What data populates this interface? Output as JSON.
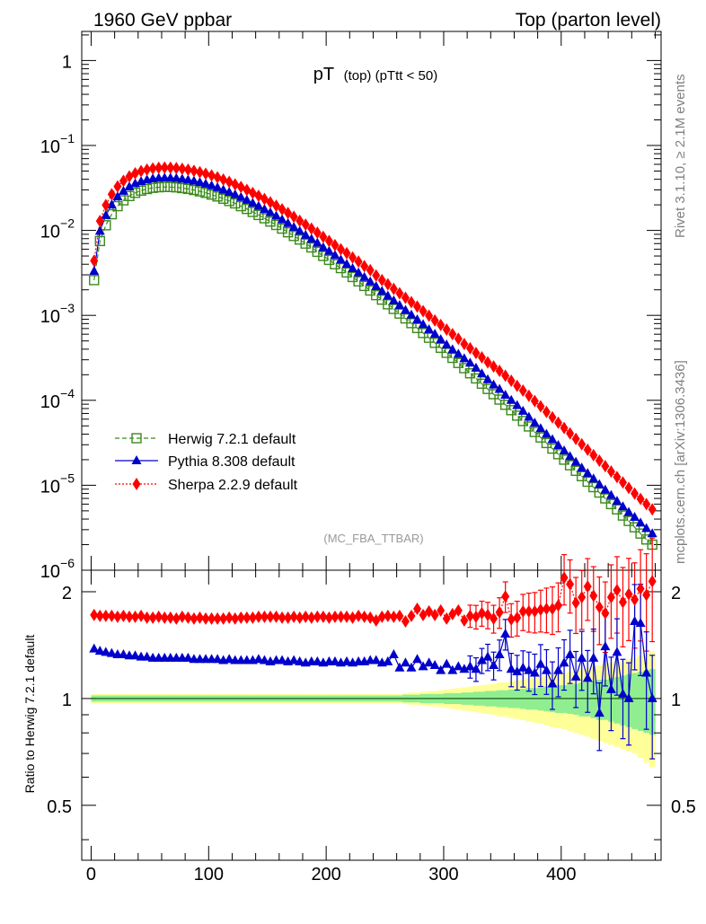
{
  "header": {
    "left": "1960 GeV ppbar",
    "right": "Top (parton level)"
  },
  "side_text": {
    "rivet": "Rivet 3.1.10, ≥ 2.1M events",
    "mcplots": "mcplots.cern.ch [arXiv:1306.3436]"
  },
  "colors": {
    "herwig": "#3a8a1a",
    "pythia": "#0000cc",
    "sherpa": "#ff0000",
    "band_inner": "#90ee90",
    "band_outer": "#ffff99"
  },
  "chart_data": [
    {
      "type": "scatter",
      "title_main": "pT",
      "title_sub": "(top) (pTtt < 50)",
      "analysis_tag": "(MC_FBA_TTBAR)",
      "xlabel": "",
      "ylabel": "",
      "ylog": true,
      "ylim": [
        1e-06,
        2.2
      ],
      "xlim": [
        -8,
        485
      ],
      "yticks": [
        {
          "v": 1,
          "label": "1"
        },
        {
          "v": 0.1,
          "mant": "10",
          "exp": "−1"
        },
        {
          "v": 0.01,
          "mant": "10",
          "exp": "−2"
        },
        {
          "v": 0.001,
          "mant": "10",
          "exp": "−3"
        },
        {
          "v": 0.0001,
          "mant": "10",
          "exp": "−4"
        },
        {
          "v": 1e-05,
          "mant": "10",
          "exp": "−5"
        },
        {
          "v": 1e-06,
          "mant": "10",
          "exp": "−6"
        }
      ],
      "legend": [
        {
          "label": "Herwig 7.2.1 default",
          "color": "#3a8a1a",
          "marker": "square-open",
          "line": "dashed"
        },
        {
          "label": "Pythia 8.308 default",
          "color": "#0000cc",
          "marker": "triangle",
          "line": "solid"
        },
        {
          "label": "Sherpa 2.2.9 default",
          "color": "#ff0000",
          "marker": "diamond",
          "line": "dotted"
        }
      ],
      "x": [
        2.5,
        7.5,
        12.5,
        17.5,
        22.5,
        27.5,
        32.5,
        37.5,
        42.5,
        47.5,
        52.5,
        57.5,
        62.5,
        67.5,
        72.5,
        77.5,
        82.5,
        87.5,
        92.5,
        97.5,
        102.5,
        107.5,
        112.5,
        117.5,
        122.5,
        127.5,
        132.5,
        137.5,
        142.5,
        147.5,
        152.5,
        157.5,
        162.5,
        167.5,
        172.5,
        177.5,
        182.5,
        187.5,
        192.5,
        197.5,
        202.5,
        207.5,
        212.5,
        217.5,
        222.5,
        227.5,
        232.5,
        237.5,
        242.5,
        247.5,
        252.5,
        257.5,
        262.5,
        267.5,
        272.5,
        277.5,
        282.5,
        287.5,
        292.5,
        297.5,
        302.5,
        307.5,
        312.5,
        317.5,
        322.5,
        327.5,
        332.5,
        337.5,
        342.5,
        347.5,
        352.5,
        357.5,
        362.5,
        367.5,
        372.5,
        377.5,
        382.5,
        387.5,
        392.5,
        397.5,
        402.5,
        407.5,
        412.5,
        417.5,
        422.5,
        427.5,
        432.5,
        437.5,
        442.5,
        447.5,
        452.5,
        457.5,
        462.5,
        467.5,
        472.5,
        477.5
      ],
      "series": [
        {
          "name": "Herwig 7.2.1 default",
          "values": [
            0.0026,
            0.0075,
            0.0115,
            0.0155,
            0.0193,
            0.0226,
            0.0254,
            0.0277,
            0.0294,
            0.0307,
            0.0317,
            0.0322,
            0.0325,
            0.0324,
            0.0321,
            0.0315,
            0.0308,
            0.0299,
            0.0288,
            0.0277,
            0.0264,
            0.0251,
            0.0236,
            0.0222,
            0.0208,
            0.0193,
            0.0179,
            0.0165,
            0.0152,
            0.0139,
            0.0127,
            0.0116,
            0.0105,
            0.0095,
            0.0086,
            0.0078,
            0.007,
            0.0063,
            0.0056,
            0.005,
            0.0045,
            0.004,
            0.0036,
            0.0032,
            0.00283,
            0.00251,
            0.00222,
            0.00196,
            0.00173,
            0.00153,
            0.00135,
            0.00119,
            0.00105,
            0.00092,
            0.00081,
            0.00071,
            0.00062,
            0.000545,
            0.000475,
            0.000415,
            0.000362,
            0.000316,
            0.000275,
            0.000239,
            0.000208,
            0.000181,
            0.000157,
            0.000136,
            0.000118,
            0.000102,
            8.85e-05,
            7.65e-05,
            6.6e-05,
            5.7e-05,
            4.92e-05,
            4.24e-05,
            3.65e-05,
            3.14e-05,
            2.7e-05,
            2.32e-05,
            2e-05,
            1.72e-05,
            1.48e-05,
            1.28e-05,
            1.1e-05,
            9.5e-06,
            8.2e-06,
            7e-06,
            6e-06,
            5.2e-06,
            4.4e-06,
            3.8e-06,
            3.2e-06,
            2.7e-06,
            2.3e-06,
            2e-06
          ]
        },
        {
          "name": "Pythia 8.308 default",
          "values": [
            0.0033,
            0.0098,
            0.015,
            0.02,
            0.0249,
            0.029,
            0.0326,
            0.0355,
            0.0377,
            0.0394,
            0.0406,
            0.0412,
            0.0415,
            0.0414,
            0.041,
            0.0402,
            0.0393,
            0.0381,
            0.0367,
            0.0352,
            0.0336,
            0.0319,
            0.03,
            0.0282,
            0.0264,
            0.0245,
            0.0227,
            0.0209,
            0.0193,
            0.0177,
            0.0162,
            0.0148,
            0.0134,
            0.0121,
            0.0109,
            0.0098,
            0.0088,
            0.0079,
            0.0071,
            0.0063,
            0.0057,
            0.0051,
            0.0045,
            0.004,
            0.00356,
            0.00317,
            0.00281,
            0.00249,
            0.00219,
            0.00192,
            0.00169,
            0.00149,
            0.00131,
            0.00115,
            0.00101,
            0.00089,
            0.00078,
            0.00068,
            0.0006,
            0.00052,
            0.00045,
            0.000395,
            0.00035,
            0.00031,
            0.000275,
            0.00024,
            0.000205,
            0.000175,
            0.000152,
            0.000135,
            0.000115,
            0.0001,
            8.7e-05,
            7.45e-05,
            6.35e-05,
            5.4e-05,
            4.65e-05,
            4e-05,
            3.45e-05,
            2.95e-05,
            2.55e-05,
            2.18e-05,
            1.87e-05,
            1.6e-05,
            1.38e-05,
            1.19e-05,
            1.02e-05,
            8.8e-06,
            7.6e-06,
            6.5e-06,
            5.6e-06,
            4.8e-06,
            4.2e-06,
            3.6e-06,
            3.1e-06,
            2.7e-06
          ]
        },
        {
          "name": "Sherpa 2.2.9 default",
          "values": [
            0.0044,
            0.0129,
            0.0199,
            0.0266,
            0.0329,
            0.0384,
            0.0432,
            0.047,
            0.05,
            0.052,
            0.0536,
            0.0545,
            0.0549,
            0.0547,
            0.0541,
            0.0531,
            0.0518,
            0.0503,
            0.0485,
            0.0465,
            0.0444,
            0.0421,
            0.0397,
            0.0373,
            0.0348,
            0.0324,
            0.03,
            0.0276,
            0.0255,
            0.0234,
            0.0214,
            0.0195,
            0.0177,
            0.016,
            0.0145,
            0.013,
            0.0117,
            0.0105,
            0.0094,
            0.0084,
            0.0075,
            0.0067,
            0.006,
            0.0054,
            0.0048,
            0.0043,
            0.0038,
            0.0034,
            0.00295,
            0.0026,
            0.00232,
            0.00205,
            0.00182,
            0.00161,
            0.00143,
            0.00127,
            0.00112,
            0.00099,
            0.00087,
            0.00077,
            0.00068,
            0.0006,
            0.00053,
            0.00046,
            0.00041,
            0.00036,
            0.00032,
            0.00028,
            0.00025,
            0.000222,
            0.000195,
            0.00017,
            0.000148,
            0.00013,
            0.000113,
            9.8e-05,
            8.5e-05,
            7.3e-05,
            6.3e-05,
            5.45e-05,
            4.72e-05,
            4.08e-05,
            3.52e-05,
            3.04e-05,
            2.62e-05,
            2.26e-05,
            1.95e-05,
            1.68e-05,
            1.45e-05,
            1.25e-05,
            1.08e-05,
            9.3e-06,
            8e-06,
            6.9e-06,
            6e-06,
            5.2e-06
          ]
        }
      ]
    },
    {
      "type": "scatter",
      "ylabel": "Ratio to Herwig 7.2.1 default",
      "ylim": [
        0.35,
        2.3
      ],
      "yticks": [
        0.5,
        1,
        2
      ],
      "ytick_labels": [
        "0.5",
        "1",
        "2"
      ],
      "xticks": [
        0,
        100,
        200,
        300,
        400
      ],
      "xtick_labels": [
        "0",
        "100",
        "200",
        "300",
        "400"
      ],
      "x": [
        2.5,
        7.5,
        12.5,
        17.5,
        22.5,
        27.5,
        32.5,
        37.5,
        42.5,
        47.5,
        52.5,
        57.5,
        62.5,
        67.5,
        72.5,
        77.5,
        82.5,
        87.5,
        92.5,
        97.5,
        102.5,
        107.5,
        112.5,
        117.5,
        122.5,
        127.5,
        132.5,
        137.5,
        142.5,
        147.5,
        152.5,
        157.5,
        162.5,
        167.5,
        172.5,
        177.5,
        182.5,
        187.5,
        192.5,
        197.5,
        202.5,
        207.5,
        212.5,
        217.5,
        222.5,
        227.5,
        232.5,
        237.5,
        242.5,
        247.5,
        252.5,
        257.5,
        262.5,
        267.5,
        272.5,
        277.5,
        282.5,
        287.5,
        292.5,
        297.5,
        302.5,
        307.5,
        312.5,
        317.5,
        322.5,
        327.5,
        332.5,
        337.5,
        342.5,
        347.5,
        352.5,
        357.5,
        362.5,
        367.5,
        372.5,
        377.5,
        382.5,
        387.5,
        392.5,
        397.5,
        402.5,
        407.5,
        412.5,
        417.5,
        422.5,
        427.5,
        432.5,
        437.5,
        442.5,
        447.5,
        452.5,
        457.5,
        462.5,
        467.5,
        472.5,
        477.5
      ],
      "series": [
        {
          "name": "Pythia 8.308 default",
          "values": [
            1.38,
            1.36,
            1.35,
            1.34,
            1.33,
            1.33,
            1.32,
            1.32,
            1.31,
            1.31,
            1.3,
            1.3,
            1.3,
            1.3,
            1.3,
            1.3,
            1.3,
            1.29,
            1.29,
            1.29,
            1.29,
            1.29,
            1.28,
            1.29,
            1.28,
            1.28,
            1.28,
            1.28,
            1.29,
            1.28,
            1.27,
            1.28,
            1.28,
            1.27,
            1.28,
            1.27,
            1.26,
            1.27,
            1.27,
            1.26,
            1.27,
            1.27,
            1.26,
            1.27,
            1.26,
            1.27,
            1.27,
            1.28,
            1.28,
            1.26,
            1.27,
            1.33,
            1.22,
            1.26,
            1.22,
            1.29,
            1.23,
            1.26,
            1.24,
            1.2,
            1.25,
            1.2,
            1.23,
            1.21,
            1.23,
            1.21,
            1.28,
            1.31,
            1.24,
            1.33,
            1.52,
            1.21,
            1.19,
            1.22,
            1.2,
            1.18,
            1.25,
            1.2,
            1.1,
            1.2,
            1.26,
            1.33,
            1.15,
            1.3,
            1.14,
            1.3,
            0.91,
            1.4,
            1.06,
            1.35,
            1.03,
            1.0,
            1.65,
            1.63,
            1.18,
            1.0
          ]
        },
        {
          "name": "Sherpa 2.2.9 default",
          "values": [
            1.72,
            1.71,
            1.71,
            1.71,
            1.7,
            1.71,
            1.7,
            1.7,
            1.71,
            1.69,
            1.69,
            1.7,
            1.69,
            1.69,
            1.68,
            1.7,
            1.69,
            1.68,
            1.69,
            1.68,
            1.68,
            1.68,
            1.68,
            1.69,
            1.68,
            1.69,
            1.69,
            1.69,
            1.7,
            1.7,
            1.7,
            1.7,
            1.69,
            1.69,
            1.7,
            1.69,
            1.7,
            1.69,
            1.7,
            1.7,
            1.69,
            1.7,
            1.7,
            1.7,
            1.69,
            1.71,
            1.7,
            1.69,
            1.66,
            1.7,
            1.71,
            1.7,
            1.71,
            1.65,
            1.71,
            1.79,
            1.72,
            1.76,
            1.72,
            1.77,
            1.68,
            1.73,
            1.77,
            1.66,
            1.71,
            1.7,
            1.74,
            1.72,
            1.68,
            1.75,
            1.94,
            1.67,
            1.69,
            1.76,
            1.76,
            1.76,
            1.78,
            1.79,
            1.79,
            1.83,
            2.19,
            2.1,
            1.86,
            1.93,
            2.07,
            1.95,
            1.81,
            1.74,
            1.93,
            2.02,
            1.87,
            1.97,
            1.9,
            2.04,
            1.96,
            2.14
          ]
        }
      ],
      "band_inner_halfwidth": [
        0.02,
        0.02,
        0.02,
        0.02,
        0.02,
        0.02,
        0.02,
        0.02,
        0.02,
        0.02,
        0.02,
        0.02,
        0.02,
        0.02,
        0.02,
        0.02,
        0.02,
        0.02,
        0.02,
        0.02,
        0.02,
        0.02,
        0.02,
        0.02,
        0.02,
        0.02,
        0.02,
        0.02,
        0.02,
        0.02,
        0.02,
        0.02,
        0.02,
        0.02,
        0.02,
        0.02,
        0.02,
        0.02,
        0.02,
        0.02,
        0.02,
        0.02,
        0.02,
        0.02,
        0.02,
        0.02,
        0.02,
        0.02,
        0.02,
        0.02,
        0.02,
        0.02,
        0.02,
        0.025,
        0.025,
        0.025,
        0.03,
        0.03,
        0.03,
        0.03,
        0.035,
        0.035,
        0.035,
        0.04,
        0.04,
        0.045,
        0.045,
        0.05,
        0.05,
        0.055,
        0.055,
        0.06,
        0.06,
        0.065,
        0.07,
        0.07,
        0.075,
        0.08,
        0.085,
        0.09,
        0.09,
        0.095,
        0.1,
        0.11,
        0.11,
        0.12,
        0.13,
        0.13,
        0.14,
        0.15,
        0.16,
        0.17,
        0.18,
        0.19,
        0.2,
        0.21
      ],
      "band_outer_halfwidth": [
        0.03,
        0.03,
        0.03,
        0.03,
        0.03,
        0.03,
        0.03,
        0.03,
        0.03,
        0.03,
        0.03,
        0.03,
        0.03,
        0.03,
        0.03,
        0.03,
        0.03,
        0.03,
        0.03,
        0.03,
        0.03,
        0.03,
        0.03,
        0.03,
        0.03,
        0.03,
        0.03,
        0.03,
        0.03,
        0.03,
        0.03,
        0.03,
        0.03,
        0.03,
        0.03,
        0.03,
        0.03,
        0.03,
        0.03,
        0.03,
        0.03,
        0.03,
        0.03,
        0.03,
        0.03,
        0.03,
        0.03,
        0.03,
        0.03,
        0.03,
        0.03,
        0.03,
        0.03,
        0.035,
        0.04,
        0.04,
        0.045,
        0.05,
        0.05,
        0.055,
        0.06,
        0.065,
        0.07,
        0.075,
        0.08,
        0.085,
        0.09,
        0.095,
        0.1,
        0.11,
        0.11,
        0.12,
        0.125,
        0.13,
        0.14,
        0.145,
        0.15,
        0.16,
        0.17,
        0.175,
        0.18,
        0.19,
        0.2,
        0.21,
        0.22,
        0.23,
        0.24,
        0.25,
        0.26,
        0.27,
        0.28,
        0.29,
        0.3,
        0.32,
        0.34,
        0.36
      ]
    }
  ]
}
